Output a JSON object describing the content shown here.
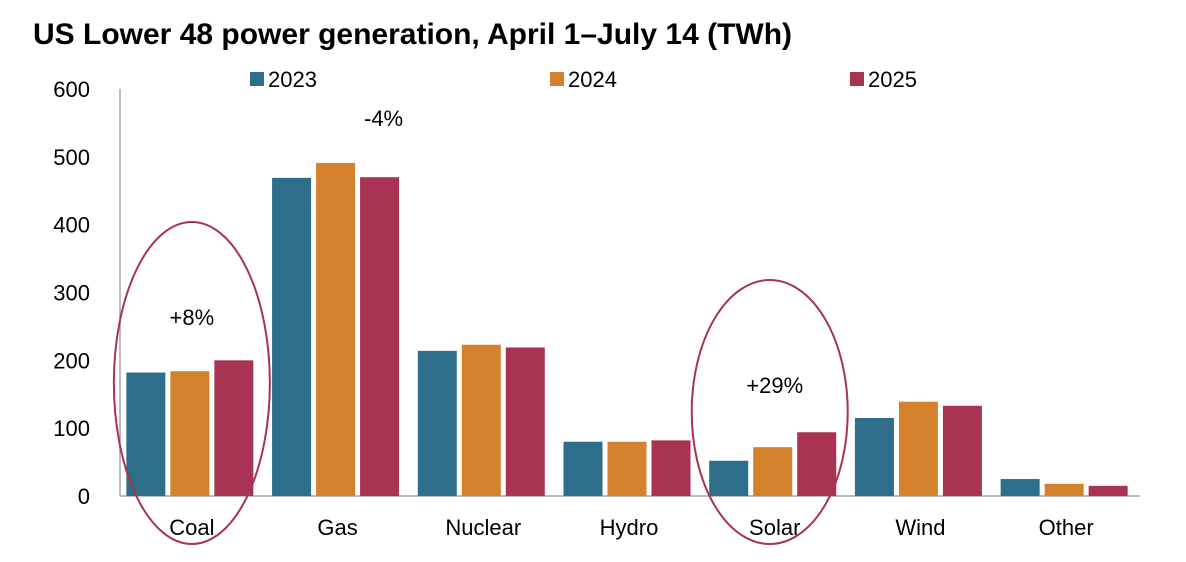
{
  "chart_data": {
    "type": "bar",
    "title": "US Lower 48 power generation, April 1–July 14 (TWh)",
    "xlabel": "",
    "ylabel": "",
    "ylim": [
      0,
      600
    ],
    "yticks": [
      "0",
      "100",
      "200",
      "300",
      "400",
      "500",
      "600"
    ],
    "categories": [
      "Coal",
      "Gas",
      "Nuclear",
      "Hydro",
      "Solar",
      "Wind",
      "Other"
    ],
    "series": [
      {
        "name": "2023",
        "color": "#2e6e8a",
        "values": [
          182,
          469,
          214,
          80,
          52,
          115,
          25
        ]
      },
      {
        "name": "2024",
        "color": "#d4812e",
        "values": [
          184,
          491,
          223,
          80,
          72,
          139,
          18
        ]
      },
      {
        "name": "2025",
        "color": "#a93352",
        "values": [
          200,
          470,
          219,
          82,
          94,
          133,
          15
        ]
      }
    ],
    "legend_position": "top",
    "grid": false,
    "annotations": [
      {
        "text": "+8%",
        "category": "Coal",
        "circled": true
      },
      {
        "text": "-4%",
        "category": "Gas",
        "circled": false
      },
      {
        "text": "+29%",
        "category": "Solar",
        "circled": true
      }
    ],
    "annotation_circle_color": "#a93352"
  }
}
